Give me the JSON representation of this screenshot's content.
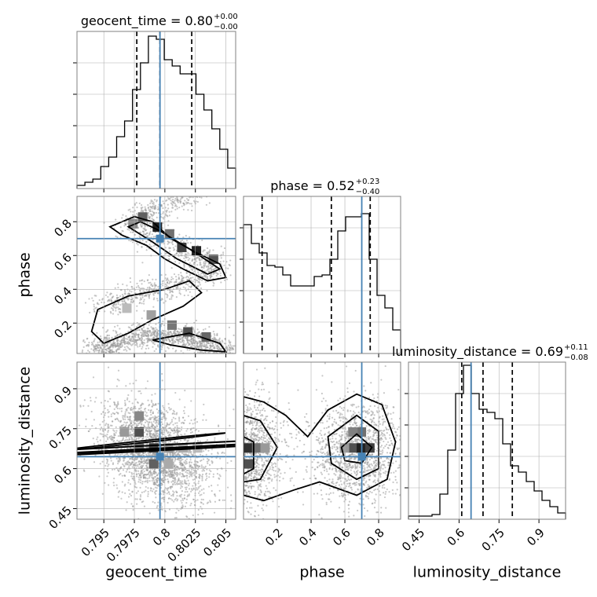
{
  "colors": {
    "truth": "#4682b4",
    "hist": "#000000",
    "grid": "#b0b0b0",
    "frame": "#808080"
  },
  "chart_data": {
    "type": "corner",
    "parameters": [
      "geocent_time",
      "phase",
      "luminosity_distance"
    ],
    "truths": {
      "geocent_time": 0.7996,
      "phase": 0.7,
      "luminosity_distance": 0.645
    },
    "grid": true,
    "panels": [
      {
        "id": "geocent_time-hist",
        "type": "histogram",
        "param": "geocent_time",
        "title": {
          "main": "geocent_time = 0.80",
          "sup": "+0.00",
          "sub": "−0.00"
        },
        "xlim": [
          0.7928,
          0.8058
        ],
        "ylim": [
          0,
          1
        ],
        "xticks": [
          0.795,
          0.7975,
          0.8,
          0.8025,
          0.805
        ],
        "bin_edges": [
          0.7928,
          0.79345,
          0.7941,
          0.79475,
          0.7954,
          0.79605,
          0.7967,
          0.79735,
          0.798,
          0.79865,
          0.7993,
          0.79995,
          0.8006,
          0.80125,
          0.8019,
          0.80255,
          0.8032,
          0.80385,
          0.8045,
          0.80515,
          0.8058
        ],
        "values": [
          0.02,
          0.04,
          0.06,
          0.14,
          0.2,
          0.33,
          0.43,
          0.63,
          0.8,
          0.97,
          0.95,
          0.82,
          0.78,
          0.73,
          0.73,
          0.6,
          0.5,
          0.38,
          0.25,
          0.13
        ],
        "quantiles": [
          0.7977,
          0.7996,
          0.8022
        ]
      },
      {
        "id": "phase-hist",
        "type": "histogram",
        "param": "phase",
        "title": {
          "main": "phase = 0.52",
          "sup": "+0.23",
          "sub": "−0.40"
        },
        "xlim": [
          0.0,
          0.93
        ],
        "ylim": [
          0,
          1
        ],
        "xticks": [
          0.2,
          0.4,
          0.6,
          0.8
        ],
        "bin_edges": [
          0.0,
          0.0465,
          0.093,
          0.1395,
          0.186,
          0.2325,
          0.279,
          0.3255,
          0.372,
          0.4185,
          0.465,
          0.5115,
          0.558,
          0.6045,
          0.651,
          0.6975,
          0.744,
          0.7905,
          0.837,
          0.8835,
          0.93
        ],
        "values": [
          0.82,
          0.7,
          0.64,
          0.56,
          0.55,
          0.5,
          0.43,
          0.43,
          0.43,
          0.49,
          0.5,
          0.6,
          0.78,
          0.87,
          0.87,
          0.89,
          0.6,
          0.37,
          0.29,
          0.15
        ],
        "quantiles": [
          0.11,
          0.52,
          0.75
        ]
      },
      {
        "id": "luminosity_distance-hist",
        "type": "histogram",
        "param": "luminosity_distance",
        "title": {
          "main": "luminosity_distance = 0.69",
          "sup": "+0.11",
          "sub": "−0.08"
        },
        "xlim": [
          0.41,
          1.0
        ],
        "ylim": [
          0,
          1
        ],
        "xticks": [
          0.45,
          0.6,
          0.75,
          0.9
        ],
        "bin_edges": [
          0.41,
          0.4395,
          0.469,
          0.4985,
          0.528,
          0.5575,
          0.587,
          0.6165,
          0.646,
          0.6755,
          0.705,
          0.7345,
          0.764,
          0.7935,
          0.823,
          0.8525,
          0.882,
          0.9115,
          0.941,
          0.9705,
          1.0
        ],
        "values": [
          0.02,
          0.02,
          0.02,
          0.03,
          0.16,
          0.44,
          0.8,
          0.98,
          0.8,
          0.7,
          0.68,
          0.64,
          0.48,
          0.34,
          0.3,
          0.24,
          0.18,
          0.12,
          0.08,
          0.04
        ],
        "quantiles": [
          0.61,
          0.69,
          0.8
        ]
      },
      {
        "id": "geocent_time-phase",
        "type": "2d-density",
        "x": "geocent_time",
        "y": "phase",
        "xlim": [
          0.7928,
          0.8058
        ],
        "ylim": [
          0.02,
          0.95
        ],
        "yticks": [
          0.2,
          0.4,
          0.6,
          0.8
        ],
        "ridge": [
          [
            0.7945,
            0.02
          ],
          [
            0.7955,
            0.08
          ],
          [
            0.7985,
            0.12
          ],
          [
            0.8005,
            0.13
          ],
          [
            0.803,
            0.09
          ],
          [
            0.8048,
            0.03
          ]
        ],
        "ridge2": [
          [
            0.795,
            0.3
          ],
          [
            0.798,
            0.38
          ],
          [
            0.8005,
            0.42
          ],
          [
            0.8035,
            0.5
          ],
          [
            0.8035,
            0.58
          ],
          [
            0.8,
            0.66
          ],
          [
            0.7975,
            0.77
          ],
          [
            0.799,
            0.87
          ],
          [
            0.802,
            0.94
          ]
        ]
      },
      {
        "id": "geocent_time-luminosity_distance",
        "type": "2d-density",
        "x": "geocent_time",
        "y": "luminosity_distance",
        "xlim": [
          0.7928,
          0.8058
        ],
        "ylim": [
          0.41,
          1.0
        ],
        "xticks": [
          0.795,
          0.7975,
          0.8,
          0.8025,
          0.805
        ],
        "yticks": [
          0.45,
          0.6,
          0.75,
          0.9
        ],
        "peak": [
          0.7993,
          0.66
        ]
      },
      {
        "id": "phase-luminosity_distance",
        "type": "2d-density",
        "x": "phase",
        "y": "luminosity_distance",
        "xlim": [
          0.0,
          0.93
        ],
        "ylim": [
          0.41,
          1.0
        ],
        "xticks": [
          0.2,
          0.4,
          0.6,
          0.8
        ],
        "peaks": [
          [
            0.02,
            0.66
          ],
          [
            0.67,
            0.66
          ]
        ]
      }
    ]
  }
}
